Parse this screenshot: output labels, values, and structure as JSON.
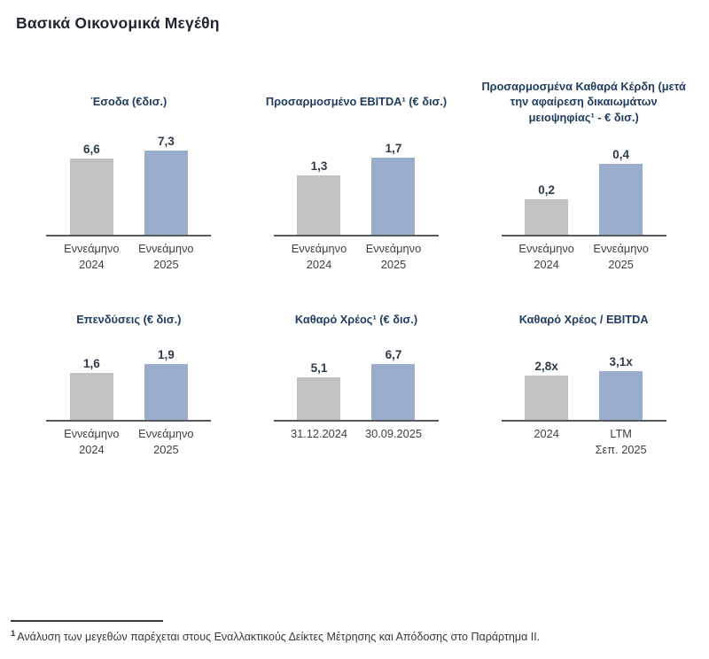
{
  "page": {
    "title": "Βασικά Οικονομικά Μεγέθη",
    "footnote": {
      "marker": "1",
      "text": "Ανάλυση των μεγεθών παρέχεται στους Εναλλακτικούς Δείκτες Μέτρησης και Απόδοσης στο Παράρτημα II."
    }
  },
  "colors": {
    "bar_prior_gray": "#C2C2C2",
    "bar_current_blue": "#9BADCD",
    "axis_line": "#58595B",
    "chart_title_navy": "#1F3C5F",
    "page_title_dark": "#1D2630"
  },
  "chart_data": [
    {
      "type": "bar",
      "title": "Έσοδα (€δισ.)",
      "categories": [
        "Εννεάμηνο\n2024",
        "Εννεάμηνο\n2025"
      ],
      "values": [
        6.6,
        7.3
      ],
      "value_labels": [
        "6,6",
        "7,3"
      ],
      "ylim": [
        0,
        7.7
      ],
      "bar_colors": [
        "#C2C2C2",
        "#9BADCD"
      ],
      "grid": false,
      "legend": "none"
    },
    {
      "type": "bar",
      "title": "Προσαρμοσμένο EBITDA¹ (€ δισ.)",
      "categories": [
        "Εννεάμηνο\n2024",
        "Εννεάμηνο\n2025"
      ],
      "values": [
        1.3,
        1.7
      ],
      "value_labels": [
        "1,3",
        "1,7"
      ],
      "ylim": [
        0,
        1.95
      ],
      "bar_colors": [
        "#C2C2C2",
        "#9BADCD"
      ],
      "grid": false,
      "legend": "none"
    },
    {
      "type": "bar",
      "title": "Προσαρμοσμένα Καθαρά Κέρδη (μετά την αφαίρεση δικαιωμάτων μειοψηφίας¹ - € δισ.)",
      "categories": [
        "Εννεάμηνο\n2024",
        "Εννεάμηνο\n2025"
      ],
      "values": [
        0.2,
        0.4
      ],
      "value_labels": [
        "0,2",
        "0,4"
      ],
      "ylim": [
        0,
        0.5
      ],
      "bar_colors": [
        "#C2C2C2",
        "#9BADCD"
      ],
      "grid": false,
      "legend": "none"
    },
    {
      "type": "bar",
      "title": "Επενδύσεις (€ δισ.)",
      "categories": [
        "Εννεάμηνο\n2024",
        "Εννεάμηνο\n2025"
      ],
      "values": [
        1.6,
        1.9
      ],
      "value_labels": [
        "1,6",
        "1,9"
      ],
      "ylim": [
        0,
        2.4
      ],
      "bar_colors": [
        "#C2C2C2",
        "#9BADCD"
      ],
      "grid": false,
      "legend": "none"
    },
    {
      "type": "bar",
      "title": "Καθαρό Χρέος¹ (€ δισ.)",
      "categories": [
        "31.12.2024",
        "30.09.2025"
      ],
      "values": [
        5.1,
        6.7
      ],
      "value_labels": [
        "5,1",
        "6,7"
      ],
      "ylim": [
        0,
        8.5
      ],
      "bar_colors": [
        "#C2C2C2",
        "#9BADCD"
      ],
      "grid": false,
      "legend": "none"
    },
    {
      "type": "bar",
      "title": "Καθαρό Χρέος / EBITDA",
      "categories": [
        "2024",
        "LTM\nΣεπ. 2025"
      ],
      "values": [
        2.8,
        3.1
      ],
      "value_labels": [
        "2,8x",
        "3,1x"
      ],
      "ylim": [
        0,
        4.5
      ],
      "bar_colors": [
        "#C2C2C2",
        "#9BADCD"
      ],
      "grid": false,
      "legend": "none"
    }
  ]
}
